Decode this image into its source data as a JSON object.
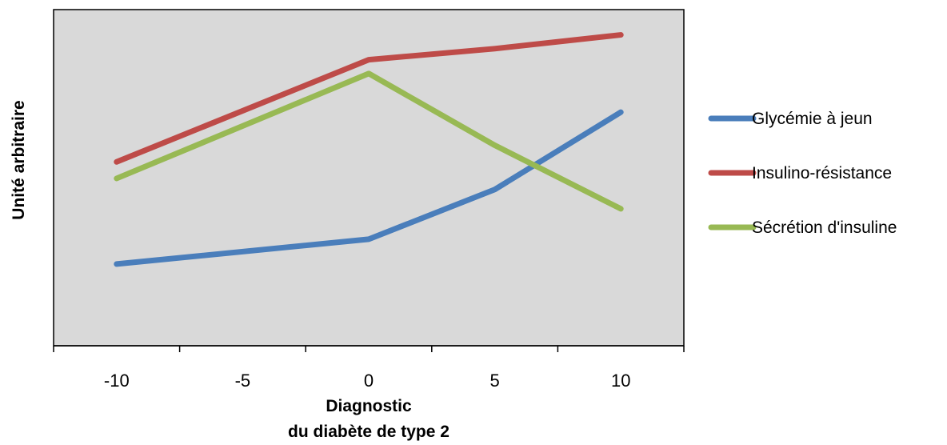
{
  "chart_data": {
    "type": "line",
    "x": [
      -10,
      0,
      5,
      10
    ],
    "xticks": [
      "-10",
      "-5",
      "0",
      "5",
      "10"
    ],
    "xlabel": [
      "Diagnostic",
      "du diabète de type 2"
    ],
    "ylabel": "Unité arbitraire",
    "xlim": [
      -12.5,
      12.5
    ],
    "ylim": [
      0,
      100
    ],
    "grid": false,
    "legend_position": "right",
    "plot_background": "#d9d9d9",
    "series": [
      {
        "name": "Glycémie à jeun",
        "color": "#4a7ebb",
        "values": [
          18,
          27,
          45,
          73
        ]
      },
      {
        "name": "Insulino-résistance",
        "color": "#be4b48",
        "values": [
          55,
          92,
          96,
          101
        ]
      },
      {
        "name": "Sécrétion d'insuline",
        "color": "#98b954",
        "values": [
          49,
          87,
          61,
          38
        ]
      }
    ]
  }
}
